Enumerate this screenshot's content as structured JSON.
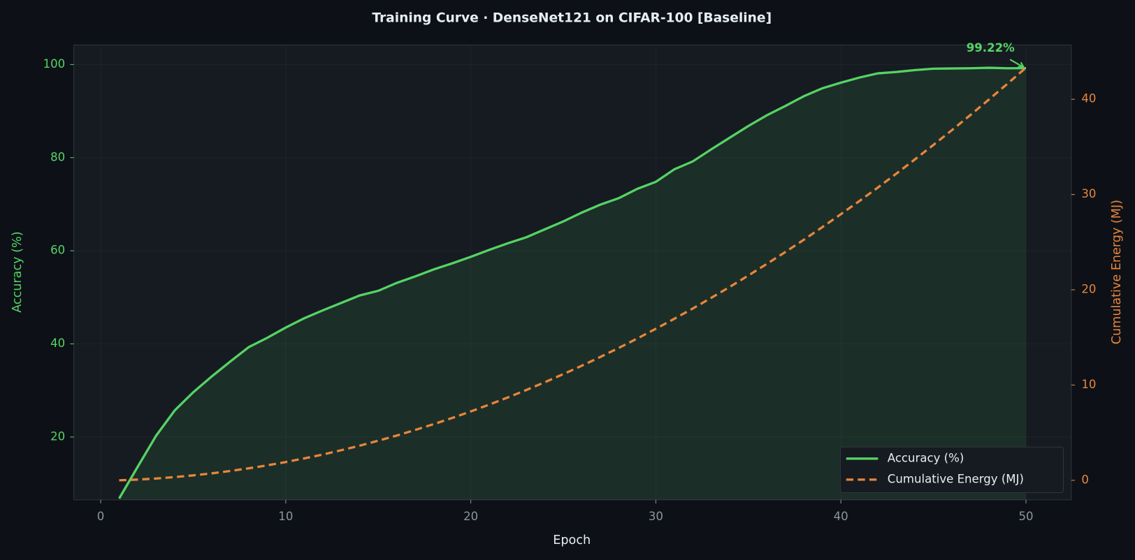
{
  "chart_data": {
    "type": "line",
    "title": "Training Curve  ·  DenseNet121 on CIFAR-100  [Baseline]",
    "x_label": "Epoch",
    "y_label": "Accuracy (%)",
    "y2_label": "Cumulative Energy (MJ)",
    "x": [
      1,
      2,
      3,
      4,
      5,
      6,
      7,
      8,
      9,
      10,
      11,
      12,
      13,
      14,
      15,
      16,
      17,
      18,
      19,
      20,
      21,
      22,
      23,
      24,
      25,
      26,
      27,
      28,
      29,
      30,
      31,
      32,
      33,
      34,
      35,
      36,
      37,
      38,
      39,
      40,
      41,
      42,
      43,
      44,
      45,
      46,
      47,
      48,
      49,
      50
    ],
    "series": [
      {
        "name": "Accuracy (%)",
        "color": "#56d364",
        "linestyle": "solid",
        "fill": true,
        "values": [
          6.8,
          13.6,
          20.3,
          25.7,
          29.6,
          33.0,
          36.2,
          39.3,
          41.3,
          43.5,
          45.5,
          47.2,
          48.8,
          50.4,
          51.4,
          53.1,
          54.5,
          56.0,
          57.3,
          58.7,
          60.2,
          61.6,
          62.9,
          64.6,
          66.3,
          68.2,
          69.9,
          71.3,
          73.3,
          74.8,
          77.5,
          79.2,
          81.8,
          84.3,
          86.8,
          89.1,
          91.1,
          93.2,
          94.9,
          96.1,
          97.2,
          98.1,
          98.4,
          98.8,
          99.1,
          99.15,
          99.2,
          99.3,
          99.2,
          99.22
        ]
      },
      {
        "name": "Cumulative Energy (MJ)",
        "color": "#e8853a",
        "linestyle": "dashed",
        "axis": "y2",
        "values": [
          0,
          0.08,
          0.19,
          0.34,
          0.52,
          0.73,
          0.98,
          1.26,
          1.57,
          1.92,
          2.3,
          2.71,
          3.16,
          3.64,
          4.16,
          4.7,
          5.29,
          5.9,
          6.55,
          7.23,
          7.95,
          8.7,
          9.48,
          10.3,
          11.15,
          12.03,
          12.95,
          13.9,
          14.89,
          15.91,
          16.96,
          18.04,
          19.16,
          20.31,
          21.5,
          22.72,
          23.97,
          25.26,
          26.58,
          27.94,
          29.32,
          30.74,
          32.2,
          33.69,
          35.21,
          36.76,
          38.35,
          39.98,
          41.63,
          43.32
        ]
      }
    ],
    "annotation": {
      "label": "99.22%",
      "x": 50,
      "value": 99.22
    },
    "xlim": [
      -1.45,
      52.45
    ],
    "xticks": [
      0,
      10,
      20,
      30,
      40,
      50
    ],
    "ylim": [
      6.5,
      104.2
    ],
    "yticks": [
      20,
      40,
      60,
      80,
      100
    ],
    "y2lim": [
      -2.05,
      45.7
    ],
    "y2ticks": [
      0,
      10,
      20,
      30,
      40
    ],
    "grid": true,
    "legend": "lower right"
  }
}
